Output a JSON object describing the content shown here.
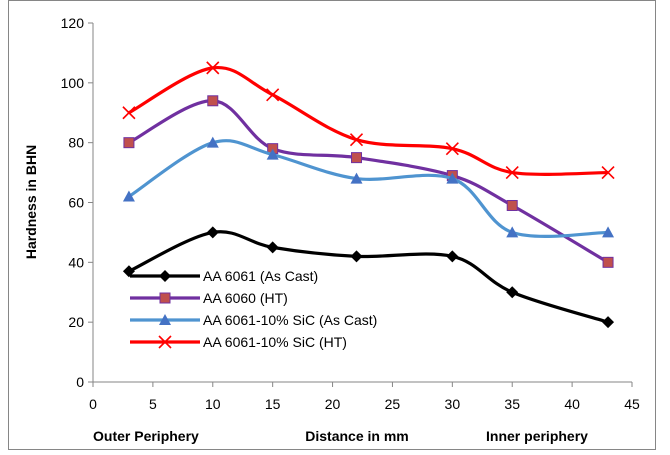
{
  "chart_data": {
    "type": "line",
    "title": "",
    "xlabel": "Distance in mm",
    "x_annotations": [
      "Outer Periphery",
      "Inner periphery"
    ],
    "ylabel": "Hardness in BHN",
    "xlim": [
      0,
      45
    ],
    "ylim": [
      0,
      120
    ],
    "x_ticks": [
      0,
      5,
      10,
      15,
      20,
      25,
      30,
      35,
      40,
      45
    ],
    "y_ticks": [
      0,
      20,
      40,
      60,
      80,
      100,
      120
    ],
    "grid": false,
    "smooth": true,
    "legend_position": "bottom-left",
    "series": [
      {
        "name": "AA  6061 (As Cast)",
        "color": "#000000",
        "marker": "diamond",
        "x": [
          3,
          10,
          15,
          22,
          30,
          35,
          43
        ],
        "y": [
          37,
          50,
          45,
          42,
          42,
          30,
          20
        ]
      },
      {
        "name": "AA 6060 (HT)",
        "color": "#7030A0",
        "marker_color": "#C0504D",
        "marker": "square",
        "x": [
          3,
          10,
          15,
          22,
          30,
          35,
          43
        ],
        "y": [
          80,
          94,
          78,
          75,
          69,
          59,
          40
        ]
      },
      {
        "name": "AA 6061-10% SiC (As Cast)",
        "color": "#4F94D0",
        "marker_color": "#4472C4",
        "marker": "triangle",
        "x": [
          3,
          10,
          15,
          22,
          30,
          35,
          43
        ],
        "y": [
          62,
          80,
          76,
          68,
          68,
          50,
          50
        ]
      },
      {
        "name": "AA 6061-10% SiC (HT)",
        "color": "#FF0000",
        "marker": "x",
        "x": [
          3,
          10,
          15,
          22,
          30,
          35,
          43
        ],
        "y": [
          90,
          105,
          96,
          81,
          78,
          70,
          70
        ]
      }
    ]
  }
}
